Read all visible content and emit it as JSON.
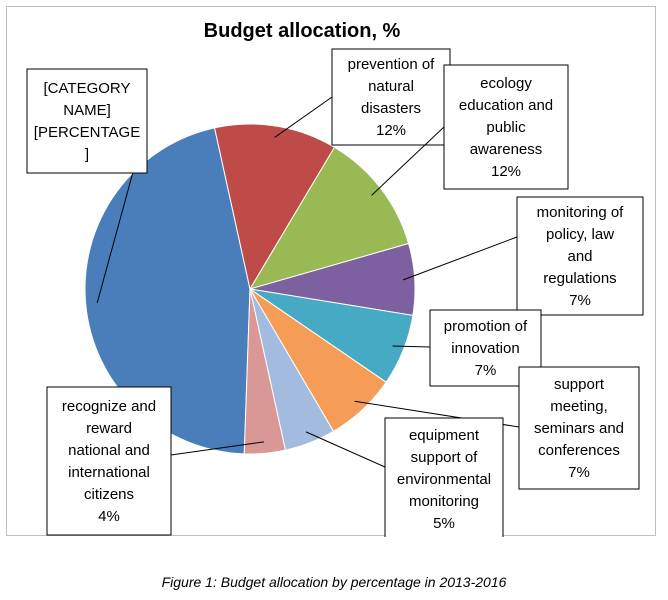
{
  "chart_data": {
    "type": "pie",
    "title": "Budget allocation, %",
    "slices": [
      {
        "label": "[CATEGORY NAME] [PERCENTAGE]",
        "lines": [
          "[CATEGORY",
          "NAME]",
          "[PERCENTAGE",
          "]"
        ],
        "value": 46,
        "color": "#4A7EBB"
      },
      {
        "label": "prevention of natural disasters 12%",
        "lines": [
          "prevention of",
          "natural",
          "disasters",
          "12%"
        ],
        "value": 12,
        "color": "#BE4B48"
      },
      {
        "label": "ecology education and public awareness 12%",
        "lines": [
          "ecology",
          "education and",
          "public",
          "awareness",
          "12%"
        ],
        "value": 12,
        "color": "#98B954"
      },
      {
        "label": "monitoring of policy, law and regulations 7%",
        "lines": [
          "monitoring of",
          "policy, law",
          "and",
          "regulations",
          "7%"
        ],
        "value": 7,
        "color": "#7D60A0"
      },
      {
        "label": "promotion of innovation 7%",
        "lines": [
          "promotion of",
          "innovation",
          "7%"
        ],
        "value": 7,
        "color": "#46AAC5"
      },
      {
        "label": "support meeting, seminars and conferences 7%",
        "lines": [
          "support",
          "meeting,",
          "seminars and",
          "conferences",
          "7%"
        ],
        "value": 7,
        "color": "#F59D56"
      },
      {
        "label": "equipment support of environmental monitoring 5%",
        "lines": [
          "equipment",
          "support of",
          "environmental",
          "monitoring",
          "5%"
        ],
        "value": 5,
        "color": "#A4BBE0"
      },
      {
        "label": "recognize and reward national and international citizens 4%",
        "lines": [
          "recognize and",
          "reward",
          "national and",
          "international",
          "citizens",
          "4%"
        ],
        "value": 4,
        "color": "#D99795"
      }
    ]
  },
  "caption": "Figure 1: Budget allocation by percentage in 2013-2016"
}
